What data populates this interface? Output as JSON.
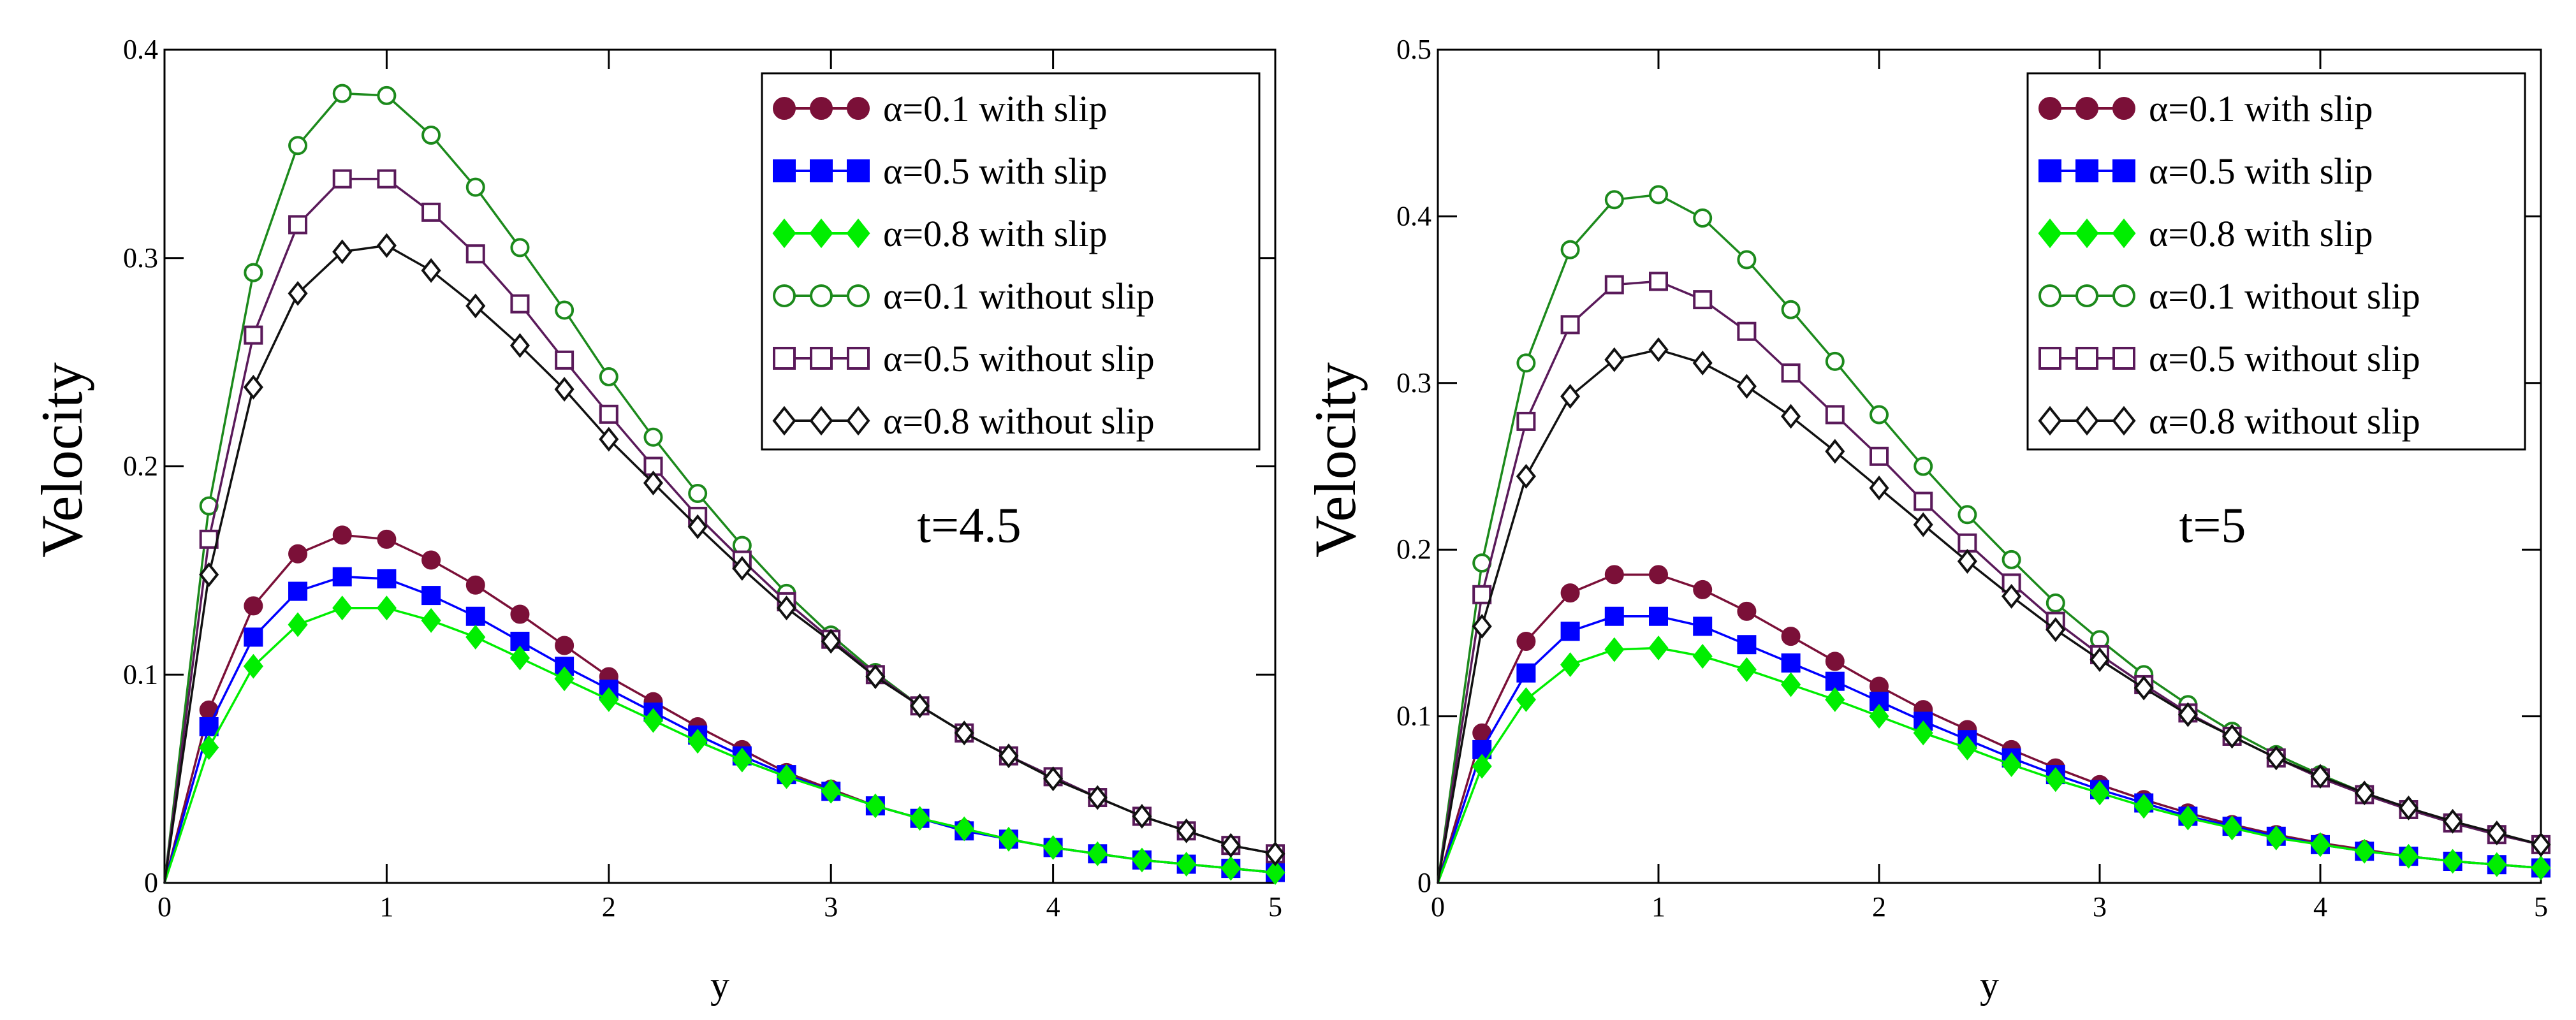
{
  "chart_data": [
    {
      "type": "line",
      "ylabel": "Velocity",
      "xlabel": "y",
      "annotation": "t=4.5",
      "xlim": [
        0,
        5
      ],
      "ylim": [
        0,
        0.4
      ],
      "xticks": [
        "0",
        "1",
        "2",
        "3",
        "4",
        "5"
      ],
      "yticks": [
        "0",
        "0.1",
        "0.2",
        "0.3",
        "0.4"
      ],
      "legend_position": "top-right",
      "grid": false,
      "x": [
        0,
        0.2,
        0.4,
        0.6,
        0.8,
        1.0,
        1.2,
        1.4,
        1.6,
        1.8,
        2.0,
        2.2,
        2.4,
        2.6,
        2.8,
        3.0,
        3.2,
        3.4,
        3.6,
        3.8,
        4.0,
        4.2,
        4.4,
        4.6,
        4.8,
        5.0
      ],
      "series": [
        {
          "name": "α=0.1 with slip",
          "color": "#7b1038",
          "marker": "filled-circle",
          "values": [
            0,
            0.083,
            0.133,
            0.158,
            0.167,
            0.165,
            0.155,
            0.143,
            0.129,
            0.114,
            0.099,
            0.087,
            0.075,
            0.064,
            0.053,
            0.045,
            0.037,
            0.031,
            0.026,
            0.021,
            0.017,
            0.014,
            0.011,
            0.009,
            0.007,
            0.005
          ]
        },
        {
          "name": "α=0.5 with slip",
          "color": "#0000ff",
          "marker": "filled-square",
          "values": [
            0,
            0.075,
            0.118,
            0.14,
            0.147,
            0.146,
            0.138,
            0.128,
            0.116,
            0.104,
            0.093,
            0.082,
            0.071,
            0.061,
            0.052,
            0.044,
            0.037,
            0.031,
            0.025,
            0.021,
            0.017,
            0.014,
            0.011,
            0.009,
            0.007,
            0.005
          ]
        },
        {
          "name": "α=0.8 with slip",
          "color": "#00ee00",
          "marker": "filled-diamond",
          "values": [
            0,
            0.065,
            0.104,
            0.124,
            0.132,
            0.132,
            0.126,
            0.118,
            0.108,
            0.098,
            0.088,
            0.078,
            0.068,
            0.059,
            0.051,
            0.044,
            0.037,
            0.031,
            0.026,
            0.021,
            0.017,
            0.014,
            0.011,
            0.009,
            0.007,
            0.005
          ]
        },
        {
          "name": "α=0.1 without slip",
          "color": "#1c8a1c",
          "marker": "open-circle",
          "values": [
            0,
            0.181,
            0.293,
            0.354,
            0.379,
            0.378,
            0.359,
            0.334,
            0.305,
            0.275,
            0.243,
            0.214,
            0.187,
            0.162,
            0.139,
            0.119,
            0.101,
            0.085,
            0.072,
            0.061,
            0.051,
            0.041,
            0.032,
            0.025,
            0.018,
            0.014
          ]
        },
        {
          "name": "α=0.5 without slip",
          "color": "#5a1a5a",
          "marker": "open-square",
          "values": [
            0,
            0.165,
            0.263,
            0.316,
            0.338,
            0.338,
            0.322,
            0.302,
            0.278,
            0.251,
            0.225,
            0.2,
            0.176,
            0.155,
            0.135,
            0.117,
            0.1,
            0.085,
            0.072,
            0.061,
            0.051,
            0.041,
            0.032,
            0.025,
            0.018,
            0.014
          ]
        },
        {
          "name": "α=0.8 without slip",
          "color": "#111111",
          "marker": "open-diamond",
          "values": [
            0,
            0.148,
            0.238,
            0.283,
            0.303,
            0.306,
            0.294,
            0.277,
            0.258,
            0.237,
            0.213,
            0.192,
            0.171,
            0.151,
            0.132,
            0.116,
            0.099,
            0.085,
            0.072,
            0.061,
            0.05,
            0.041,
            0.032,
            0.025,
            0.018,
            0.014
          ]
        }
      ]
    },
    {
      "type": "line",
      "ylabel": "Velocity",
      "xlabel": "y",
      "annotation": "t=5",
      "xlim": [
        0,
        5
      ],
      "ylim": [
        0,
        0.5
      ],
      "xticks": [
        "0",
        "1",
        "2",
        "3",
        "4",
        "5"
      ],
      "yticks": [
        "0",
        "0.1",
        "0.2",
        "0.3",
        "0.4",
        "0.5"
      ],
      "legend_position": "top-right",
      "grid": false,
      "x": [
        0,
        0.2,
        0.4,
        0.6,
        0.8,
        1.0,
        1.2,
        1.4,
        1.6,
        1.8,
        2.0,
        2.2,
        2.4,
        2.6,
        2.8,
        3.0,
        3.2,
        3.4,
        3.6,
        3.8,
        4.0,
        4.2,
        4.4,
        4.6,
        4.8,
        5.0
      ],
      "series": [
        {
          "name": "α=0.1 with slip",
          "color": "#7b1038",
          "marker": "filled-circle",
          "values": [
            0,
            0.09,
            0.145,
            0.174,
            0.185,
            0.185,
            0.176,
            0.163,
            0.148,
            0.133,
            0.118,
            0.104,
            0.092,
            0.08,
            0.069,
            0.059,
            0.05,
            0.042,
            0.035,
            0.029,
            0.024,
            0.02,
            0.016,
            0.013,
            0.011,
            0.009
          ]
        },
        {
          "name": "α=0.5 with slip",
          "color": "#0000ff",
          "marker": "filled-square",
          "values": [
            0,
            0.08,
            0.126,
            0.151,
            0.16,
            0.16,
            0.154,
            0.143,
            0.132,
            0.121,
            0.109,
            0.097,
            0.086,
            0.075,
            0.065,
            0.056,
            0.048,
            0.04,
            0.034,
            0.028,
            0.023,
            0.019,
            0.016,
            0.013,
            0.011,
            0.009
          ]
        },
        {
          "name": "α=0.8 with slip",
          "color": "#00ee00",
          "marker": "filled-diamond",
          "values": [
            0,
            0.07,
            0.11,
            0.131,
            0.14,
            0.141,
            0.136,
            0.128,
            0.119,
            0.11,
            0.1,
            0.09,
            0.081,
            0.071,
            0.062,
            0.054,
            0.046,
            0.039,
            0.033,
            0.027,
            0.023,
            0.019,
            0.016,
            0.013,
            0.011,
            0.009
          ]
        },
        {
          "name": "α=0.1 without slip",
          "color": "#1c8a1c",
          "marker": "open-circle",
          "values": [
            0,
            0.192,
            0.312,
            0.38,
            0.41,
            0.413,
            0.399,
            0.374,
            0.344,
            0.313,
            0.281,
            0.25,
            0.221,
            0.194,
            0.168,
            0.146,
            0.125,
            0.107,
            0.091,
            0.077,
            0.065,
            0.054,
            0.044,
            0.036,
            0.029,
            0.023
          ]
        },
        {
          "name": "α=0.5 without slip",
          "color": "#5a1a5a",
          "marker": "open-square",
          "values": [
            0,
            0.173,
            0.277,
            0.335,
            0.359,
            0.361,
            0.35,
            0.331,
            0.306,
            0.281,
            0.256,
            0.229,
            0.204,
            0.18,
            0.157,
            0.137,
            0.119,
            0.102,
            0.088,
            0.075,
            0.063,
            0.053,
            0.044,
            0.036,
            0.029,
            0.023
          ]
        },
        {
          "name": "α=0.8 without slip",
          "color": "#111111",
          "marker": "open-diamond",
          "values": [
            0,
            0.154,
            0.244,
            0.292,
            0.314,
            0.32,
            0.312,
            0.298,
            0.28,
            0.259,
            0.237,
            0.215,
            0.193,
            0.172,
            0.152,
            0.134,
            0.117,
            0.101,
            0.088,
            0.075,
            0.064,
            0.054,
            0.045,
            0.037,
            0.03,
            0.023
          ]
        }
      ]
    }
  ]
}
